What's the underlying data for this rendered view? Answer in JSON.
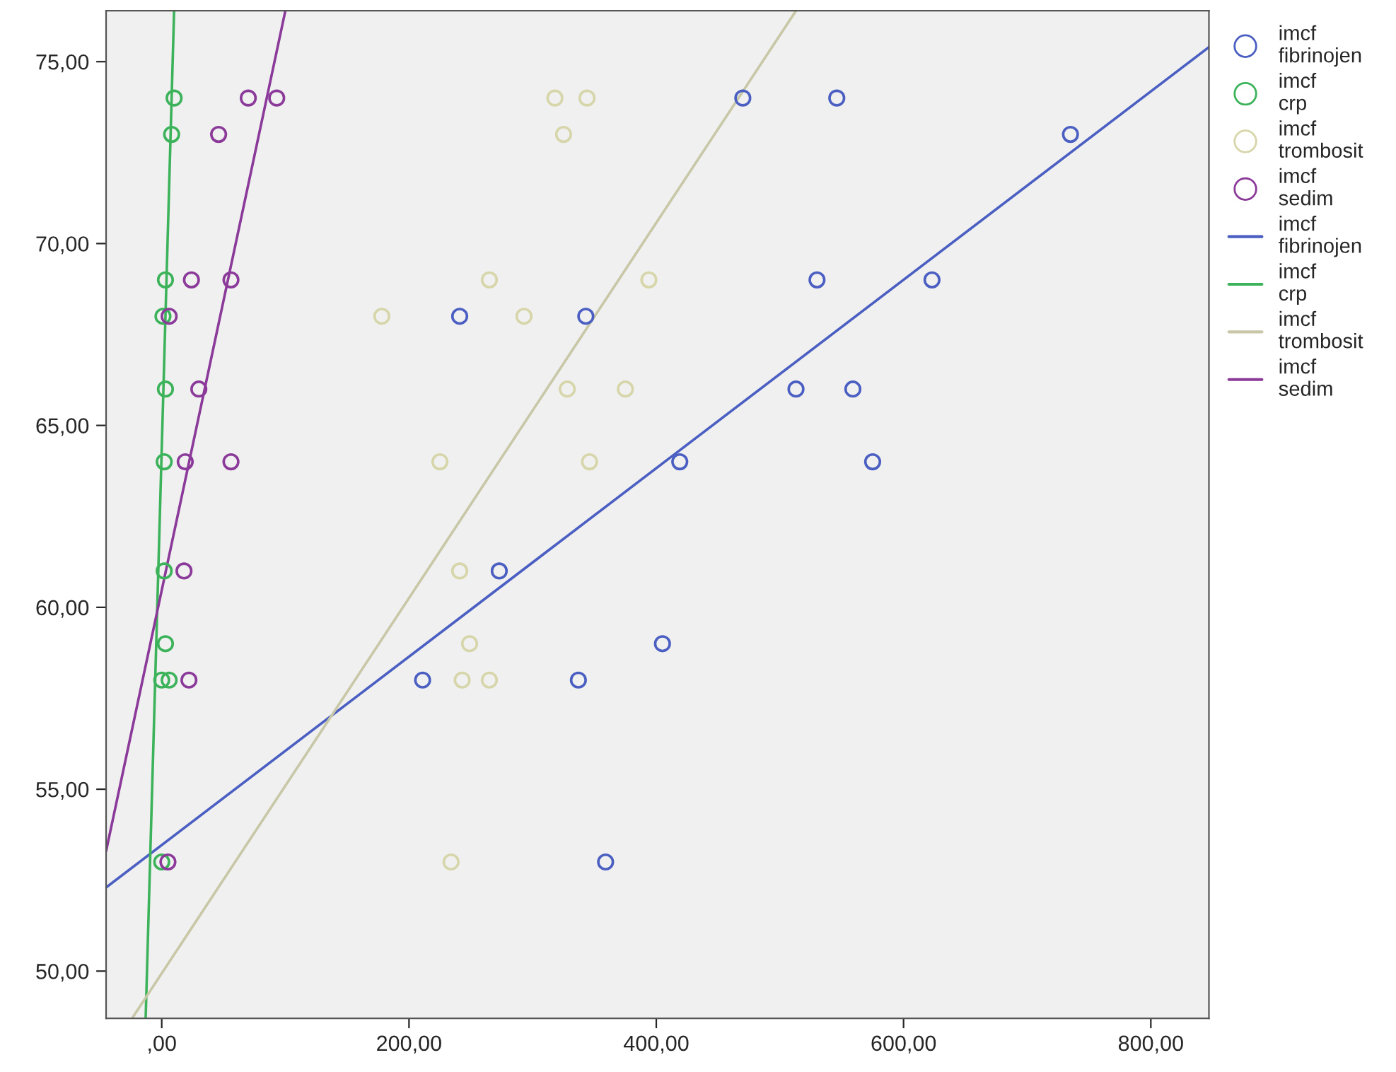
{
  "chart_data": {
    "type": "scatter",
    "xlim": [
      -45,
      847
    ],
    "ylim": [
      48.7,
      76.4
    ],
    "xticks": [
      {
        "value": 0,
        "label": ",00"
      },
      {
        "value": 200,
        "label": "200,00"
      },
      {
        "value": 400,
        "label": "400,00"
      },
      {
        "value": 600,
        "label": "600,00"
      },
      {
        "value": 800,
        "label": "800,00"
      }
    ],
    "yticks": [
      {
        "value": 50,
        "label": "50,00"
      },
      {
        "value": 55,
        "label": "55,00"
      },
      {
        "value": 60,
        "label": "60,00"
      },
      {
        "value": 65,
        "label": "65,00"
      },
      {
        "value": 70,
        "label": "70,00"
      },
      {
        "value": 75,
        "label": "75,00"
      }
    ],
    "grid": false,
    "legend": "right",
    "series": [
      {
        "marker": "circle",
        "name": "imcf fibrinojen",
        "color": "#4a5fc1",
        "x": [
          470,
          546,
          735,
          530,
          623,
          241,
          343,
          513,
          559,
          575,
          419,
          273,
          405,
          211,
          337,
          359
        ],
        "values": [
          74,
          74,
          73,
          69,
          69,
          68,
          68,
          66,
          66,
          64,
          64,
          61,
          59,
          58,
          58,
          53
        ]
      },
      {
        "marker": "circle",
        "name": "imcf crp",
        "color": "#3cb35a",
        "x": [
          10,
          8,
          3,
          1,
          3,
          2,
          2,
          3,
          0,
          6,
          0
        ],
        "values": [
          74,
          73,
          69,
          68,
          66,
          64,
          61,
          59,
          58,
          58,
          53
        ]
      },
      {
        "marker": "circle",
        "name": "imcf trombosit",
        "color": "#d6d6aa",
        "x": [
          318,
          344,
          325,
          265,
          394,
          178,
          293,
          328,
          375,
          225,
          346,
          241,
          249,
          243,
          265,
          234
        ],
        "values": [
          74,
          74,
          73,
          69,
          69,
          68,
          68,
          66,
          66,
          64,
          64,
          61,
          59,
          58,
          58,
          53
        ]
      },
      {
        "marker": "circle",
        "name": "imcf sedim",
        "color": "#8b3a9a",
        "x": [
          70,
          93,
          46,
          24,
          56,
          6,
          30,
          19,
          56,
          18,
          22,
          5
        ],
        "values": [
          74,
          74,
          73,
          69,
          69,
          68,
          66,
          64,
          64,
          61,
          58,
          53
        ]
      },
      {
        "type": "line",
        "marker": "none",
        "name": "imcf fibrinojen",
        "color": "#4a5fc1",
        "x": [
          -45,
          847
        ],
        "values": [
          52.3,
          75.4
        ]
      },
      {
        "type": "line",
        "marker": "none",
        "name": "imcf crp",
        "color": "#3cb35a",
        "x": [
          -13,
          10
        ],
        "values": [
          48.7,
          76.4
        ]
      },
      {
        "type": "line",
        "marker": "none",
        "name": "imcf trombosit",
        "color": "#c8c8a8",
        "x": [
          -24,
          513
        ],
        "values": [
          48.7,
          76.4
        ]
      },
      {
        "type": "line",
        "marker": "none",
        "name": "imcf sedim",
        "color": "#8b3a9a",
        "x": [
          -45,
          100
        ],
        "values": [
          53.3,
          76.4
        ]
      }
    ]
  }
}
